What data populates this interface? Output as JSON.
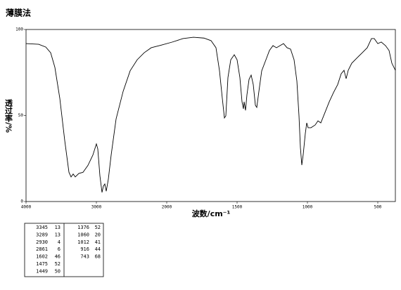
{
  "chart_data": {
    "type": "line",
    "title": "薄膜法",
    "x_label": "波数/cm⁻¹",
    "y_label": "透过率/%",
    "color": "#000000",
    "x": [
      4000,
      3820,
      3720,
      3650,
      3590,
      3520,
      3450,
      3390,
      3360,
      3330,
      3300,
      3250,
      3190,
      3120,
      3050,
      3000,
      2980,
      2950,
      2920,
      2900,
      2880,
      2860,
      2830,
      2790,
      2720,
      2620,
      2520,
      2420,
      2320,
      2220,
      2070,
      1960,
      1885,
      1810,
      1735,
      1685,
      1650,
      1625,
      1605,
      1590,
      1580,
      1565,
      1545,
      1520,
      1500,
      1480,
      1465,
      1455,
      1450,
      1440,
      1430,
      1415,
      1400,
      1385,
      1370,
      1360,
      1345,
      1325,
      1295,
      1270,
      1245,
      1220,
      1195,
      1170,
      1145,
      1120,
      1095,
      1075,
      1060,
      1050,
      1040,
      1030,
      1015,
      1005,
      995,
      975,
      945,
      925,
      905,
      875,
      845,
      815,
      785,
      760,
      740,
      725,
      710,
      685,
      645,
      610,
      575,
      545,
      525,
      500,
      475,
      445,
      420,
      400,
      375
    ],
    "values": [
      91.8,
      91.4,
      89.8,
      86.5,
      78,
      60,
      35.5,
      17,
      14.3,
      16,
      14.3,
      16.3,
      17,
      21,
      27,
      33.5,
      30.6,
      15,
      5.3,
      9,
      10.2,
      6,
      13,
      27,
      48,
      64,
      76,
      82.4,
      86.5,
      89.4,
      91,
      92.7,
      94.7,
      95.5,
      95,
      93.5,
      89.4,
      76,
      60,
      48.6,
      49.8,
      72,
      82.4,
      85.3,
      82.4,
      72,
      58,
      53.9,
      58,
      53,
      62,
      71,
      73.5,
      68,
      56,
      54.7,
      64,
      76,
      82.4,
      87.8,
      90.6,
      89.4,
      90.6,
      91.8,
      89.4,
      88.6,
      82.4,
      70,
      49.8,
      31.4,
      21.2,
      27.3,
      39.6,
      45.7,
      42.9,
      42.9,
      44.5,
      46.9,
      45.7,
      51.8,
      58,
      63.3,
      68,
      74.3,
      76.3,
      71.4,
      76.3,
      80.4,
      83.7,
      86.5,
      89.4,
      94.7,
      94.7,
      91.8,
      92.7,
      90.6,
      87.8,
      80.4,
      76.3
    ],
    "xlim": [
      4000,
      375
    ],
    "xticks": [
      4000,
      3000,
      2000,
      1500,
      1000,
      500
    ],
    "ylim": [
      0,
      100
    ],
    "yticks": [
      0,
      50,
      100
    ]
  },
  "table": {
    "rows": [
      [
        3345,
        13,
        1376,
        52
      ],
      [
        3289,
        13,
        1060,
        20
      ],
      [
        2930,
        4,
        1012,
        41
      ],
      [
        2861,
        6,
        916,
        44
      ],
      [
        1602,
        46,
        743,
        68
      ],
      [
        1475,
        52
      ],
      [
        1449,
        50
      ]
    ]
  }
}
